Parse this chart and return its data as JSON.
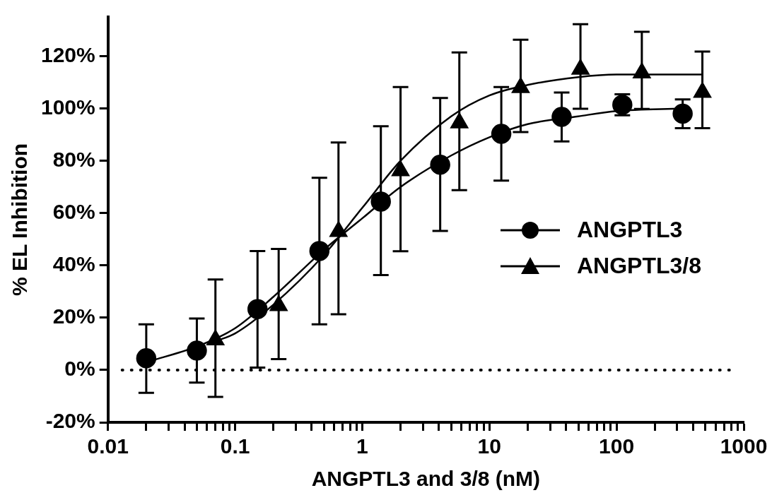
{
  "chart_data": {
    "type": "scatter",
    "xlabel": "ANGPTL3 and 3/8 (nM)",
    "ylabel": "% EL Inhibition",
    "log": "x",
    "xlim": [
      0.01,
      1000
    ],
    "ylim": [
      -20,
      135
    ],
    "xticks": [
      0.01,
      {
        "value": 0.02,
        "label": null
      },
      {
        "value": 0.03,
        "label": null
      },
      {
        "value": 0.04,
        "label": null
      },
      {
        "value": 0.05,
        "label": null
      },
      {
        "value": 0.06,
        "label": null
      },
      {
        "value": 0.07,
        "label": null
      },
      {
        "value": 0.08,
        "label": null
      },
      {
        "value": 0.09,
        "label": null
      },
      0.1,
      {
        "value": 0.2,
        "label": null
      },
      {
        "value": 0.3,
        "label": null
      },
      {
        "value": 0.4,
        "label": null
      },
      {
        "value": 0.5,
        "label": null
      },
      {
        "value": 0.6,
        "label": null
      },
      {
        "value": 0.7,
        "label": null
      },
      {
        "value": 0.8,
        "label": null
      },
      {
        "value": 0.9,
        "label": null
      },
      1,
      {
        "value": 2,
        "label": null
      },
      {
        "value": 3,
        "label": null
      },
      {
        "value": 4,
        "label": null
      },
      {
        "value": 5,
        "label": null
      },
      {
        "value": 6,
        "label": null
      },
      {
        "value": 7,
        "label": null
      },
      {
        "value": 8,
        "label": null
      },
      {
        "value": 9,
        "label": null
      },
      10,
      {
        "value": 20,
        "label": null
      },
      {
        "value": 30,
        "label": null
      },
      {
        "value": 40,
        "label": null
      },
      {
        "value": 50,
        "label": null
      },
      {
        "value": 60,
        "label": null
      },
      {
        "value": 70,
        "label": null
      },
      {
        "value": 80,
        "label": null
      },
      {
        "value": 90,
        "label": null
      },
      100,
      {
        "value": 200,
        "label": null
      },
      {
        "value": 300,
        "label": null
      },
      {
        "value": 400,
        "label": null
      },
      {
        "value": 500,
        "label": null
      },
      {
        "value": 600,
        "label": null
      },
      {
        "value": 700,
        "label": null
      },
      {
        "value": 800,
        "label": null
      },
      {
        "value": 900,
        "label": null
      },
      1000
    ],
    "yticks": [
      {
        "value": -20,
        "label": "-20%"
      },
      {
        "value": 0,
        "label": "0%"
      },
      {
        "value": 20,
        "label": "20%"
      },
      {
        "value": 40,
        "label": "40%"
      },
      {
        "value": 60,
        "label": "60%"
      },
      {
        "value": 80,
        "label": "80%"
      },
      {
        "value": 100,
        "label": "100%"
      },
      {
        "value": 120,
        "label": "120%"
      }
    ],
    "grid": false,
    "legend": "right",
    "ref_lines": [
      {
        "axis": "y",
        "value": 0,
        "line_style": "dotted",
        "color": "#000000"
      }
    ],
    "series": [
      {
        "name": "ANGPTL3",
        "type": "scatter",
        "marker": "circle",
        "color": "#000000",
        "x": [
          0.02,
          0.05,
          0.15,
          0.46,
          1.4,
          4.1,
          12.4,
          37,
          111,
          331
        ],
        "values": [
          4.5,
          7.4,
          23.3,
          45.5,
          64.4,
          78.5,
          90.3,
          96.8,
          101.4,
          98
        ],
        "errors": [
          [
            -8.7,
            17.5
          ],
          [
            -4.8,
            19.7
          ],
          [
            0.9,
            45.5
          ],
          [
            17.5,
            73.5
          ],
          [
            36.3,
            93.2
          ],
          [
            53.2,
            104
          ],
          [
            72.4,
            108.2
          ],
          [
            87.4,
            106.1
          ],
          [
            97.4,
            105.4
          ],
          [
            92.5,
            103.5
          ]
        ]
      },
      {
        "name": "ANGPTL3/8",
        "type": "scatter",
        "marker": "triangle",
        "color": "#000000",
        "x": [
          0.07,
          0.22,
          0.65,
          2,
          5.8,
          17.6,
          52,
          158,
          473
        ],
        "values": [
          11.5,
          24.6,
          53,
          76.2,
          94.5,
          108,
          115,
          113.6,
          106.2
        ],
        "errors": [
          [
            -10.3,
            34.6
          ],
          [
            4.2,
            46.3
          ],
          [
            21.3,
            87
          ],
          [
            45.4,
            108.2
          ],
          [
            68.8,
            121.4
          ],
          [
            91,
            126.3
          ],
          [
            99.9,
            132.2
          ],
          [
            99.8,
            129.3
          ],
          [
            92.5,
            121.8
          ]
        ]
      },
      {
        "type": "line",
        "marker": "none",
        "color": "#000000",
        "x": [
          0.02,
          0.05,
          0.1,
          0.2,
          0.5,
          1,
          2,
          5,
          10,
          20,
          50,
          100,
          331
        ],
        "values": [
          3,
          9,
          16,
          28,
          46,
          58,
          70,
          82,
          89,
          94,
          97,
          99,
          100
        ]
      },
      {
        "type": "line",
        "marker": "none",
        "color": "#000000",
        "x": [
          0.07,
          0.1,
          0.2,
          0.5,
          1,
          2,
          5,
          10,
          20,
          50,
          100,
          473
        ],
        "values": [
          11,
          14,
          25,
          44,
          62,
          80,
          97,
          105,
          109,
          112,
          113,
          113
        ]
      }
    ]
  }
}
